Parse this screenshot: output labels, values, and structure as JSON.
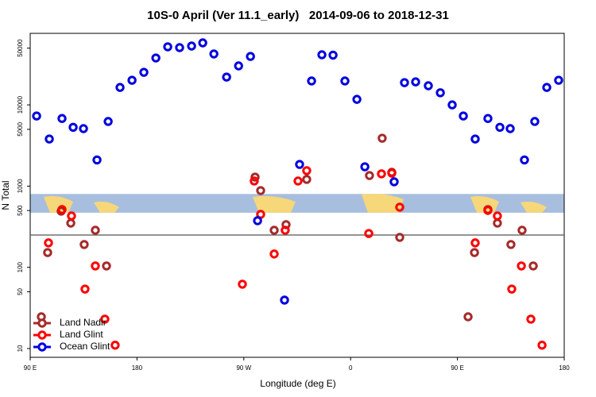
{
  "chart_data": {
    "type": "scatter",
    "title": "10S-0 April (Ver 11.1_early)   2014-09-06 to 2018-12-31",
    "x_label": "Longitude (deg E)",
    "y_label": "N Total",
    "log_y": true,
    "xlim": [
      90,
      540
    ],
    "ylim": [
      7.8,
      76000
    ],
    "xticks": [
      {
        "value": 90,
        "label": "90 E"
      },
      180,
      {
        "value": 270,
        "label": "90 W"
      },
      {
        "value": 360,
        "label": "0"
      },
      {
        "value": 450,
        "label": "90 E"
      },
      {
        "value": 540,
        "label": "180"
      }
    ],
    "yticks": [
      10,
      50,
      100,
      500,
      1000,
      5000,
      10000,
      50000
    ],
    "hline": 250,
    "band": [
      470,
      800
    ],
    "legend": "bottom-left",
    "series": [
      {
        "name": "Land Nadir",
        "color": "#a52a2a",
        "x": [
          99.4,
          104.7,
          116.1,
          124.2,
          135.5,
          144.9,
          154.3,
          279.5,
          284.2,
          295.6,
          305.6,
          323,
          375.9,
          386.6,
          394.7,
          401.4,
          459,
          464.4,
          475.7,
          483.7,
          495.1,
          504.5,
          513.9
        ],
        "values": [
          24.6,
          152,
          491,
          350,
          191,
          286,
          104,
          1290,
          881,
          286,
          335,
          1210,
          1350,
          3890,
          1480,
          234,
          24.6,
          152,
          514,
          350,
          191,
          286,
          104
        ]
      },
      {
        "name": "Land Glint",
        "color": "#ff0000",
        "x": [
          105.4,
          116.8,
          124.8,
          136.2,
          144.9,
          152.9,
          161.6,
          268.8,
          278.8,
          284.2,
          295.6,
          304.9,
          315.7,
          323,
          375.3,
          386,
          394.7,
          401.4,
          465,
          475.7,
          483.7,
          495.8,
          503.9,
          511.9,
          521.3
        ],
        "values": [
          200,
          514,
          429,
          54,
          104,
          23,
          11,
          62,
          1155,
          449,
          146,
          286,
          1155,
          1550,
          261,
          1415,
          1445,
          550,
          200,
          502,
          429,
          54,
          104,
          23,
          11
        ]
      },
      {
        "name": "Ocean Glint",
        "color": "#0000e0",
        "x": [
          95.4,
          106.1,
          116.8,
          126.2,
          134.9,
          146.3,
          155.7,
          165.7,
          175.8,
          185.8,
          195.9,
          205.9,
          215.9,
          226,
          235.4,
          244.8,
          255.5,
          265.6,
          275.6,
          281.6,
          304.3,
          317,
          327.1,
          335.8,
          345.2,
          355.2,
          365.3,
          372,
          396.7,
          405.4,
          414.8,
          425.5,
          435.6,
          445.6,
          455,
          465,
          475.7,
          485.8,
          494.5,
          506.5,
          515.2,
          525.3,
          535.3
        ],
        "values": [
          7300,
          3800,
          6800,
          5300,
          5100,
          2100,
          6250,
          16400,
          20100,
          25200,
          37800,
          51900,
          50700,
          53000,
          58000,
          42400,
          22000,
          30200,
          39500,
          375,
          39.5,
          1850,
          19700,
          41400,
          41000,
          19700,
          11700,
          1730,
          1130,
          18800,
          19200,
          17200,
          14100,
          10000,
          7300,
          3800,
          6800,
          5300,
          5100,
          2100,
          6250,
          16400,
          20100
        ]
      }
    ]
  }
}
